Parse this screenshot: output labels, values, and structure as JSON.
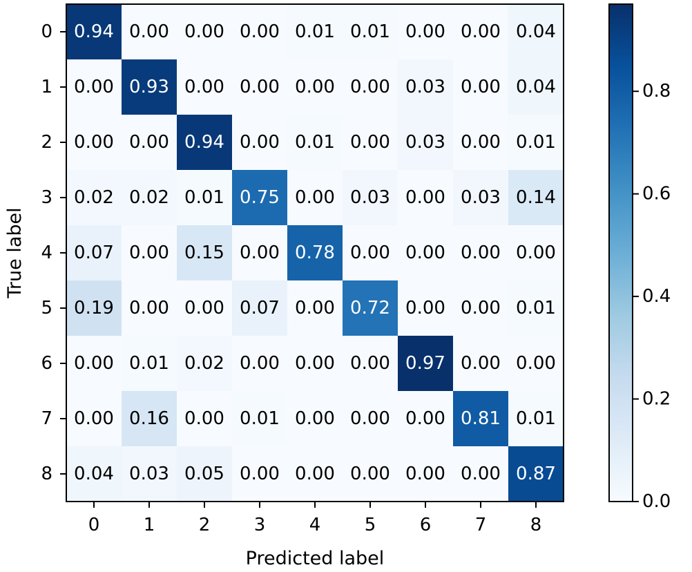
{
  "chart_data": {
    "type": "heatmap",
    "title": "",
    "xlabel": "Predicted label",
    "ylabel": "True label",
    "x_categories": [
      "0",
      "1",
      "2",
      "3",
      "4",
      "5",
      "6",
      "7",
      "8"
    ],
    "y_categories": [
      "0",
      "1",
      "2",
      "3",
      "4",
      "5",
      "6",
      "7",
      "8"
    ],
    "values": [
      [
        0.94,
        0.0,
        0.0,
        0.0,
        0.01,
        0.01,
        0.0,
        0.0,
        0.04
      ],
      [
        0.0,
        0.93,
        0.0,
        0.0,
        0.0,
        0.0,
        0.03,
        0.0,
        0.04
      ],
      [
        0.0,
        0.0,
        0.94,
        0.0,
        0.01,
        0.0,
        0.03,
        0.0,
        0.01
      ],
      [
        0.02,
        0.02,
        0.01,
        0.75,
        0.0,
        0.03,
        0.0,
        0.03,
        0.14
      ],
      [
        0.07,
        0.0,
        0.15,
        0.0,
        0.78,
        0.0,
        0.0,
        0.0,
        0.0
      ],
      [
        0.19,
        0.0,
        0.0,
        0.07,
        0.0,
        0.72,
        0.0,
        0.0,
        0.01
      ],
      [
        0.0,
        0.01,
        0.02,
        0.0,
        0.0,
        0.0,
        0.97,
        0.0,
        0.0
      ],
      [
        0.0,
        0.16,
        0.0,
        0.01,
        0.0,
        0.0,
        0.0,
        0.81,
        0.01
      ],
      [
        0.04,
        0.03,
        0.05,
        0.0,
        0.0,
        0.0,
        0.0,
        0.0,
        0.87
      ]
    ],
    "colormap": "Blues",
    "colorbar": {
      "min": 0.0,
      "max": 0.97,
      "ticks": [
        "0.0",
        "0.2",
        "0.4",
        "0.6",
        "0.8"
      ],
      "tick_values": [
        0.0,
        0.2,
        0.4,
        0.6,
        0.8
      ]
    },
    "grid": false,
    "legend": "colorbar-right"
  }
}
